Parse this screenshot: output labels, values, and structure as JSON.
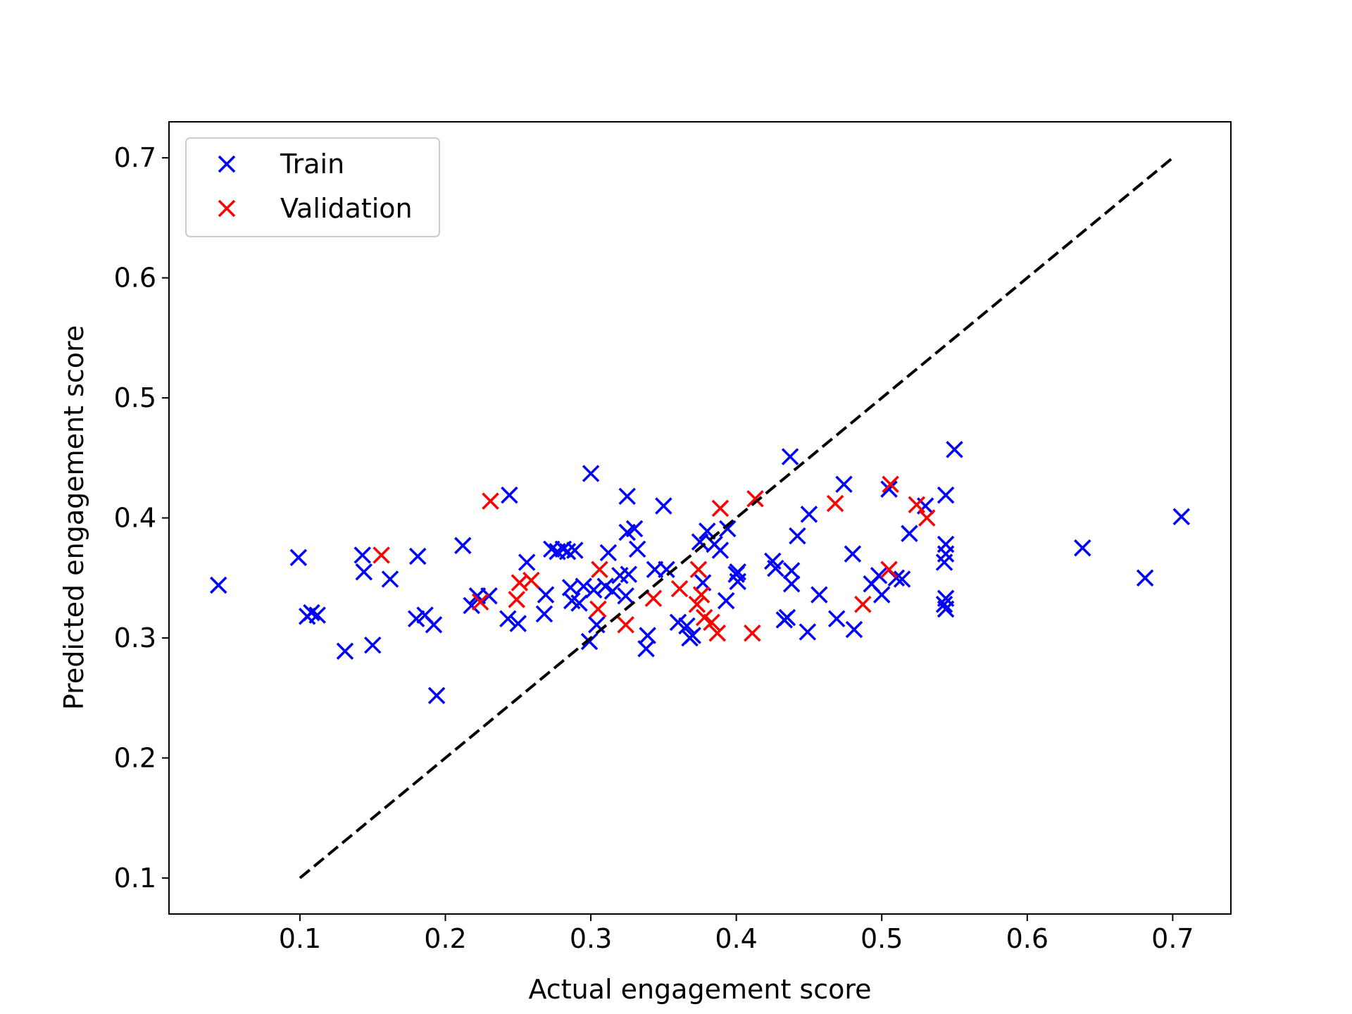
{
  "chart_data": {
    "type": "scatter",
    "xlabel": "Actual engagement score",
    "ylabel": "Predicted engagement score",
    "xlim": [
      0.01,
      0.74
    ],
    "ylim": [
      0.07,
      0.73
    ],
    "xticks": [
      "0.1",
      "0.2",
      "0.3",
      "0.4",
      "0.5",
      "0.6",
      "0.7"
    ],
    "yticks": [
      "0.1",
      "0.2",
      "0.3",
      "0.4",
      "0.5",
      "0.6",
      "0.7"
    ],
    "grid": false,
    "legend_position": "top-left",
    "reference_line": {
      "x": [
        0.1,
        0.7
      ],
      "y": [
        0.1,
        0.7
      ],
      "style": "dashed",
      "color": "#000000"
    },
    "series": [
      {
        "name": "Train",
        "color": "#0000ff",
        "marker": "x",
        "points": [
          [
            0.044,
            0.344
          ],
          [
            0.099,
            0.367
          ],
          [
            0.105,
            0.318
          ],
          [
            0.108,
            0.321
          ],
          [
            0.112,
            0.319
          ],
          [
            0.131,
            0.289
          ],
          [
            0.143,
            0.369
          ],
          [
            0.144,
            0.355
          ],
          [
            0.15,
            0.294
          ],
          [
            0.162,
            0.349
          ],
          [
            0.18,
            0.316
          ],
          [
            0.181,
            0.368
          ],
          [
            0.186,
            0.319
          ],
          [
            0.192,
            0.311
          ],
          [
            0.194,
            0.252
          ],
          [
            0.212,
            0.377
          ],
          [
            0.218,
            0.327
          ],
          [
            0.222,
            0.335
          ],
          [
            0.23,
            0.335
          ],
          [
            0.243,
            0.316
          ],
          [
            0.244,
            0.419
          ],
          [
            0.25,
            0.312
          ],
          [
            0.256,
            0.363
          ],
          [
            0.268,
            0.32
          ],
          [
            0.269,
            0.336
          ],
          [
            0.273,
            0.374
          ],
          [
            0.277,
            0.372
          ],
          [
            0.281,
            0.374
          ],
          [
            0.284,
            0.372
          ],
          [
            0.286,
            0.342
          ],
          [
            0.287,
            0.331
          ],
          [
            0.289,
            0.373
          ],
          [
            0.292,
            0.329
          ],
          [
            0.295,
            0.343
          ],
          [
            0.299,
            0.297
          ],
          [
            0.3,
            0.437
          ],
          [
            0.302,
            0.34
          ],
          [
            0.304,
            0.311
          ],
          [
            0.31,
            0.343
          ],
          [
            0.312,
            0.371
          ],
          [
            0.315,
            0.339
          ],
          [
            0.32,
            0.352
          ],
          [
            0.324,
            0.335
          ],
          [
            0.325,
            0.388
          ],
          [
            0.325,
            0.418
          ],
          [
            0.326,
            0.353
          ],
          [
            0.33,
            0.391
          ],
          [
            0.332,
            0.374
          ],
          [
            0.338,
            0.291
          ],
          [
            0.339,
            0.302
          ],
          [
            0.344,
            0.357
          ],
          [
            0.35,
            0.41
          ],
          [
            0.352,
            0.357
          ],
          [
            0.36,
            0.313
          ],
          [
            0.366,
            0.31
          ],
          [
            0.368,
            0.3
          ],
          [
            0.37,
            0.302
          ],
          [
            0.375,
            0.38
          ],
          [
            0.377,
            0.346
          ],
          [
            0.38,
            0.389
          ],
          [
            0.385,
            0.378
          ],
          [
            0.389,
            0.373
          ],
          [
            0.393,
            0.331
          ],
          [
            0.394,
            0.391
          ],
          [
            0.4,
            0.353
          ],
          [
            0.401,
            0.347
          ],
          [
            0.401,
            0.355
          ],
          [
            0.425,
            0.364
          ],
          [
            0.427,
            0.358
          ],
          [
            0.433,
            0.315
          ],
          [
            0.435,
            0.317
          ],
          [
            0.437,
            0.451
          ],
          [
            0.438,
            0.356
          ],
          [
            0.438,
            0.345
          ],
          [
            0.442,
            0.385
          ],
          [
            0.449,
            0.305
          ],
          [
            0.45,
            0.403
          ],
          [
            0.457,
            0.336
          ],
          [
            0.469,
            0.316
          ],
          [
            0.474,
            0.428
          ],
          [
            0.48,
            0.37
          ],
          [
            0.481,
            0.307
          ],
          [
            0.493,
            0.345
          ],
          [
            0.498,
            0.352
          ],
          [
            0.5,
            0.336
          ],
          [
            0.505,
            0.424
          ],
          [
            0.51,
            0.35
          ],
          [
            0.514,
            0.349
          ],
          [
            0.519,
            0.387
          ],
          [
            0.53,
            0.41
          ],
          [
            0.543,
            0.363
          ],
          [
            0.543,
            0.328
          ],
          [
            0.544,
            0.333
          ],
          [
            0.544,
            0.324
          ],
          [
            0.544,
            0.37
          ],
          [
            0.544,
            0.378
          ],
          [
            0.544,
            0.419
          ],
          [
            0.55,
            0.457
          ],
          [
            0.638,
            0.375
          ],
          [
            0.681,
            0.35
          ],
          [
            0.706,
            0.401
          ]
        ]
      },
      {
        "name": "Validation",
        "color": "#ff0000",
        "marker": "x",
        "points": [
          [
            0.156,
            0.369
          ],
          [
            0.224,
            0.33
          ],
          [
            0.231,
            0.414
          ],
          [
            0.249,
            0.332
          ],
          [
            0.251,
            0.346
          ],
          [
            0.259,
            0.348
          ],
          [
            0.305,
            0.324
          ],
          [
            0.306,
            0.357
          ],
          [
            0.324,
            0.311
          ],
          [
            0.343,
            0.333
          ],
          [
            0.361,
            0.341
          ],
          [
            0.373,
            0.328
          ],
          [
            0.374,
            0.357
          ],
          [
            0.376,
            0.336
          ],
          [
            0.378,
            0.317
          ],
          [
            0.383,
            0.313
          ],
          [
            0.387,
            0.304
          ],
          [
            0.389,
            0.408
          ],
          [
            0.411,
            0.304
          ],
          [
            0.413,
            0.416
          ],
          [
            0.468,
            0.412
          ],
          [
            0.487,
            0.328
          ],
          [
            0.505,
            0.357
          ],
          [
            0.506,
            0.428
          ],
          [
            0.524,
            0.411
          ],
          [
            0.531,
            0.4
          ]
        ]
      }
    ]
  }
}
